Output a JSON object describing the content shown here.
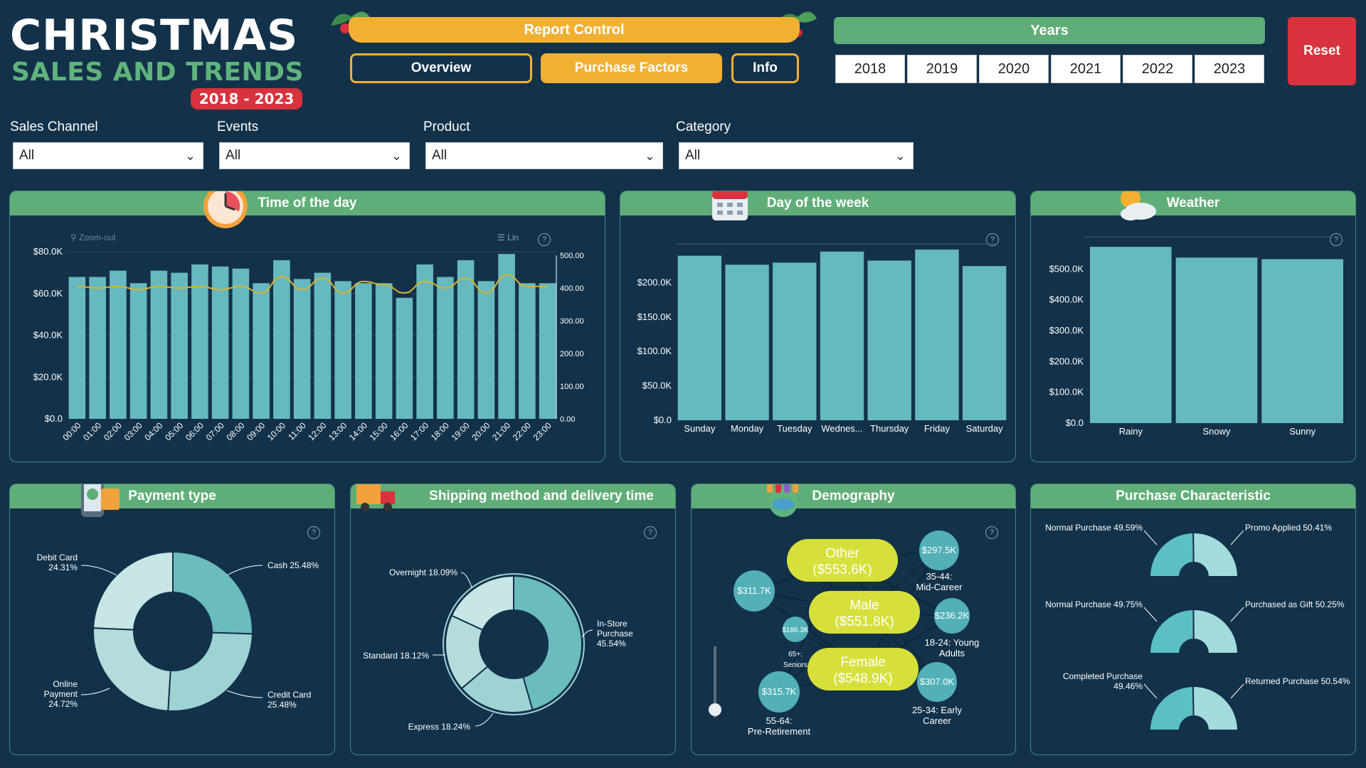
{
  "header": {
    "title_line1": "CHRISTMAS",
    "title_line2": "SALES AND TRENDS",
    "year_range": "2018 - 2023"
  },
  "report_control": {
    "label": "Report Control",
    "buttons": [
      "Overview",
      "Purchase Factors",
      "Info"
    ],
    "active": "Purchase Factors"
  },
  "years": {
    "label": "Years",
    "options": [
      "2018",
      "2019",
      "2020",
      "2021",
      "2022",
      "2023"
    ]
  },
  "reset_label": "Reset",
  "filters": [
    {
      "label": "Sales Channel",
      "value": "All"
    },
    {
      "label": "Events",
      "value": "All"
    },
    {
      "label": "Product",
      "value": "All"
    },
    {
      "label": "Category",
      "value": "All"
    }
  ],
  "panels": {
    "time_of_day": {
      "title": "Time of the day",
      "zoom_label": "Zoom-out",
      "lin_label": "Lin"
    },
    "day_of_week": {
      "title": "Day of the week"
    },
    "weather": {
      "title": "Weather"
    },
    "payment": {
      "title": "Payment type"
    },
    "shipping": {
      "title": "Shipping method and delivery time"
    },
    "demography": {
      "title": "Demography"
    },
    "purchase": {
      "title": "Purchase Characteristic"
    }
  },
  "colors": {
    "bar": "#66b9bf",
    "line": "#d9b32f",
    "header_green": "#5fae78",
    "accent_orange": "#f2b033",
    "reset_red": "#d8323d",
    "bubble_yellow": "#d7e03a"
  },
  "chart_data": [
    {
      "id": "time_of_day",
      "type": "bar",
      "categories": [
        "00:00",
        "01:00",
        "02:00",
        "03:00",
        "04:00",
        "05:00",
        "06:00",
        "07:00",
        "08:00",
        "09:00",
        "10:00",
        "11:00",
        "12:00",
        "13:00",
        "14:00",
        "15:00",
        "16:00",
        "17:00",
        "18:00",
        "19:00",
        "20:00",
        "21:00",
        "22:00",
        "23:00"
      ],
      "values": [
        68000,
        68000,
        71000,
        65000,
        71000,
        70000,
        74000,
        73000,
        72000,
        65000,
        76000,
        67000,
        70000,
        66000,
        65000,
        65000,
        58000,
        74000,
        68000,
        76000,
        66000,
        79000,
        65000,
        65000
      ],
      "yticks": [
        "$0.0",
        "$20.0K",
        "$40.0K",
        "$60.0K",
        "$80.0K"
      ],
      "ylim": [
        0,
        92000
      ],
      "line": {
        "values": [
          405,
          400,
          405,
          395,
          405,
          400,
          405,
          395,
          405,
          385,
          435,
          395,
          430,
          385,
          420,
          410,
          385,
          420,
          400,
          430,
          385,
          440,
          405,
          405
        ]
      },
      "y2ticks": [
        "0.00",
        "100.00",
        "200.00",
        "300.00",
        "400.00",
        "500.00"
      ],
      "y2lim": [
        0,
        500
      ]
    },
    {
      "id": "day_of_week",
      "type": "bar",
      "categories": [
        "Sunday",
        "Monday",
        "Tuesday",
        "Wednes...",
        "Thursday",
        "Friday",
        "Saturday"
      ],
      "values": [
        239000,
        226000,
        229000,
        245000,
        232000,
        248000,
        224000
      ],
      "yticks": [
        "$0.0",
        "$50.0K",
        "$100.0K",
        "$150.0K",
        "$200.0K"
      ],
      "ylim": [
        0,
        250000
      ]
    },
    {
      "id": "weather",
      "type": "bar",
      "categories": [
        "Rainy",
        "Snowy",
        "Sunny"
      ],
      "values": [
        572000,
        537000,
        532000
      ],
      "yticks": [
        "$0.0",
        "$100.0K",
        "$200.0K",
        "$300.0K",
        "$400.0K",
        "$500.0K"
      ],
      "ylim": [
        0,
        600000
      ]
    },
    {
      "id": "payment",
      "type": "pie",
      "slices": [
        {
          "name": "Cash",
          "label": "Cash 25.48%",
          "value": 25.48
        },
        {
          "name": "Credit Card",
          "label": "Credit Card 25.48%",
          "value": 25.48
        },
        {
          "name": "Online Payment",
          "label": "Online Payment 24.72%",
          "value": 24.72
        },
        {
          "name": "Debit Card",
          "label": "Debit Card 24.31%",
          "value": 24.31
        }
      ]
    },
    {
      "id": "shipping",
      "type": "pie",
      "slices": [
        {
          "name": "In-Store Purchase",
          "label": "In-Store Purchase 45.54%",
          "value": 45.54
        },
        {
          "name": "Express",
          "label": "Express 18.24%",
          "value": 18.24
        },
        {
          "name": "Standard",
          "label": "Standard 18.12%",
          "value": 18.12
        },
        {
          "name": "Overnight",
          "label": "Overnight 18.09%",
          "value": 18.09
        }
      ]
    },
    {
      "id": "demography",
      "type": "scatter",
      "gender": [
        {
          "name": "Other",
          "value": "($553.6K)"
        },
        {
          "name": "Male",
          "value": "($551.8K)"
        },
        {
          "name": "Female",
          "value": "($548.9K)"
        }
      ],
      "age_groups": [
        {
          "value": "$297.5K",
          "name": "35-44: Mid-Career"
        },
        {
          "value": "$311.7K",
          "name": ""
        },
        {
          "value": "$186.3K",
          "name": "65+: Seniors"
        },
        {
          "value": "$236.2K",
          "name": "18-24: Young Adults"
        },
        {
          "value": "$315.7K",
          "name": "55-64: Pre-Retirement"
        },
        {
          "value": "$307.0K",
          "name": "25-34: Early Career"
        }
      ]
    },
    {
      "id": "purchase_characteristic",
      "type": "pie",
      "gauges": [
        {
          "left": "Normal Purchase 49.59%",
          "right": "Promo Applied 50.41%",
          "left_value": 49.59,
          "right_value": 50.41
        },
        {
          "left": "Normal Purchase 49.75%",
          "right": "Purchased as Gift 50.25%",
          "left_value": 49.75,
          "right_value": 50.25
        },
        {
          "left": "Completed Purchase 49.46%",
          "right": "Returned Purchase 50.54%",
          "left_value": 49.46,
          "right_value": 50.54
        }
      ]
    }
  ]
}
